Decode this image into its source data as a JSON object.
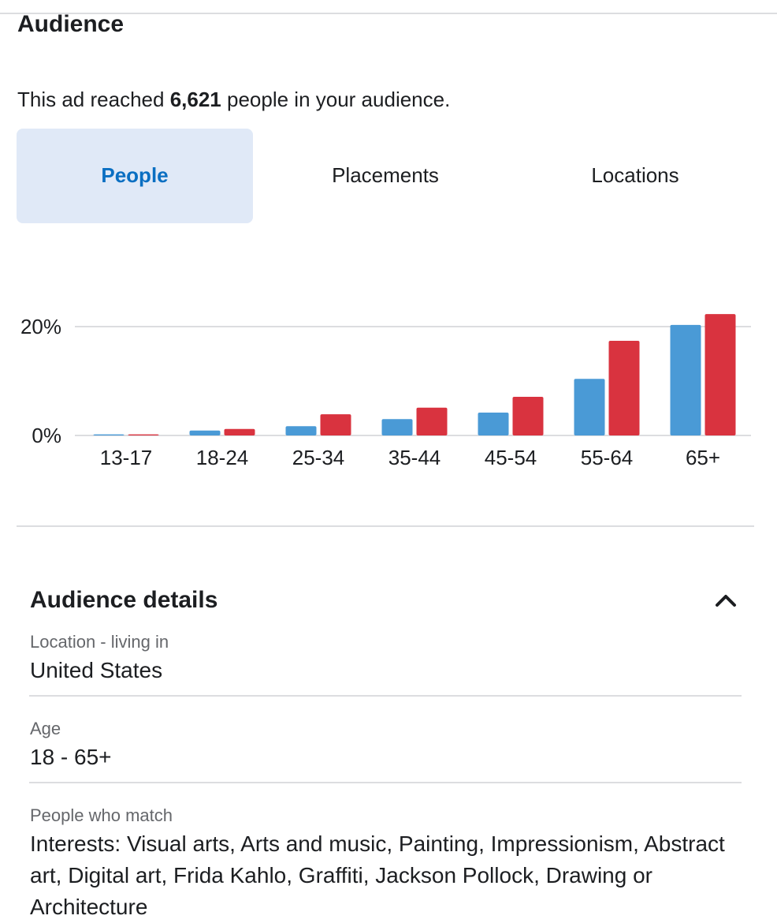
{
  "header": {
    "title": "Audience",
    "reach_prefix": "This ad reached",
    "reach_count": "6,621",
    "reach_suffix": "people in your audience."
  },
  "tabs": [
    "People",
    "Placements",
    "Locations"
  ],
  "chart_data": {
    "type": "bar",
    "categories": [
      "13-17",
      "18-24",
      "25-34",
      "35-44",
      "45-54",
      "55-64",
      "65+"
    ],
    "series": [
      {
        "color": "#4a9ad6",
        "values": [
          0.2,
          0.9,
          1.7,
          3.0,
          4.2,
          10.4,
          20.3
        ]
      },
      {
        "color": "#d9333f",
        "values": [
          0.2,
          1.2,
          3.9,
          5.1,
          7.1,
          17.4,
          22.3
        ]
      }
    ],
    "ylim": [
      0,
      25
    ],
    "yticks": [
      {
        "value": 0,
        "label": "0%"
      },
      {
        "value": 20,
        "label": "20%"
      }
    ],
    "grid": true
  },
  "details": {
    "title": "Audience details",
    "items": [
      {
        "label": "Location - living in",
        "value": "United States"
      },
      {
        "label": "Age",
        "value": "18 - 65+"
      },
      {
        "label": "People who match",
        "value": "Interests: Visual arts, Arts and music, Painting, Impressionism, Abstract art, Digital art, Frida Kahlo, Graffiti, Jackson Pollock, Drawing or Architecture"
      }
    ]
  }
}
